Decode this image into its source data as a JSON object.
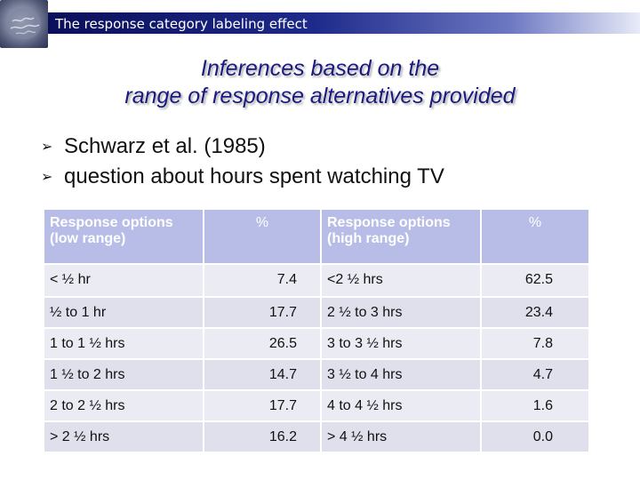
{
  "header": {
    "title": "The response category labeling effect"
  },
  "slide": {
    "title_line1": "Inferences based on the",
    "title_line2": "range of response alternatives provided",
    "bullets": [
      "Schwarz et al. (1985)",
      "question about hours spent watching TV"
    ],
    "bullet_marker_icon": "arrowhead-bullet-icon"
  },
  "table": {
    "headers": {
      "low_options": "Response options (low range)",
      "low_pct": "%",
      "high_options": "Response options (high range)",
      "high_pct": "%"
    },
    "rows": [
      {
        "low": "< ½ hr",
        "low_pct": "7.4",
        "high": "<2 ½ hrs",
        "high_pct": "62.5"
      },
      {
        "low": "½ to 1 hr",
        "low_pct": "17.7",
        "high": "2 ½ to 3 hrs",
        "high_pct": "23.4"
      },
      {
        "low": "1 to 1 ½ hrs",
        "low_pct": "26.5",
        "high": "3 to 3 ½ hrs",
        "high_pct": "7.8"
      },
      {
        "low": "1 ½ to 2 hrs",
        "low_pct": "14.7",
        "high": "3 ½ to 4 hrs",
        "high_pct": "4.7"
      },
      {
        "low": "2 to 2 ½ hrs",
        "low_pct": "17.7",
        "high": "4 to 4 ½ hrs",
        "high_pct": "1.6"
      },
      {
        "low": "> 2 ½ hrs",
        "low_pct": "16.2",
        "high": "> 4 ½ hrs",
        "high_pct": "0.0"
      }
    ]
  },
  "colors": {
    "header_bar_start": "#0a0f5a",
    "title_text": "#1a1a80",
    "table_header_bg": "#b7bde6",
    "table_cell_bg": "#eaebf3"
  }
}
